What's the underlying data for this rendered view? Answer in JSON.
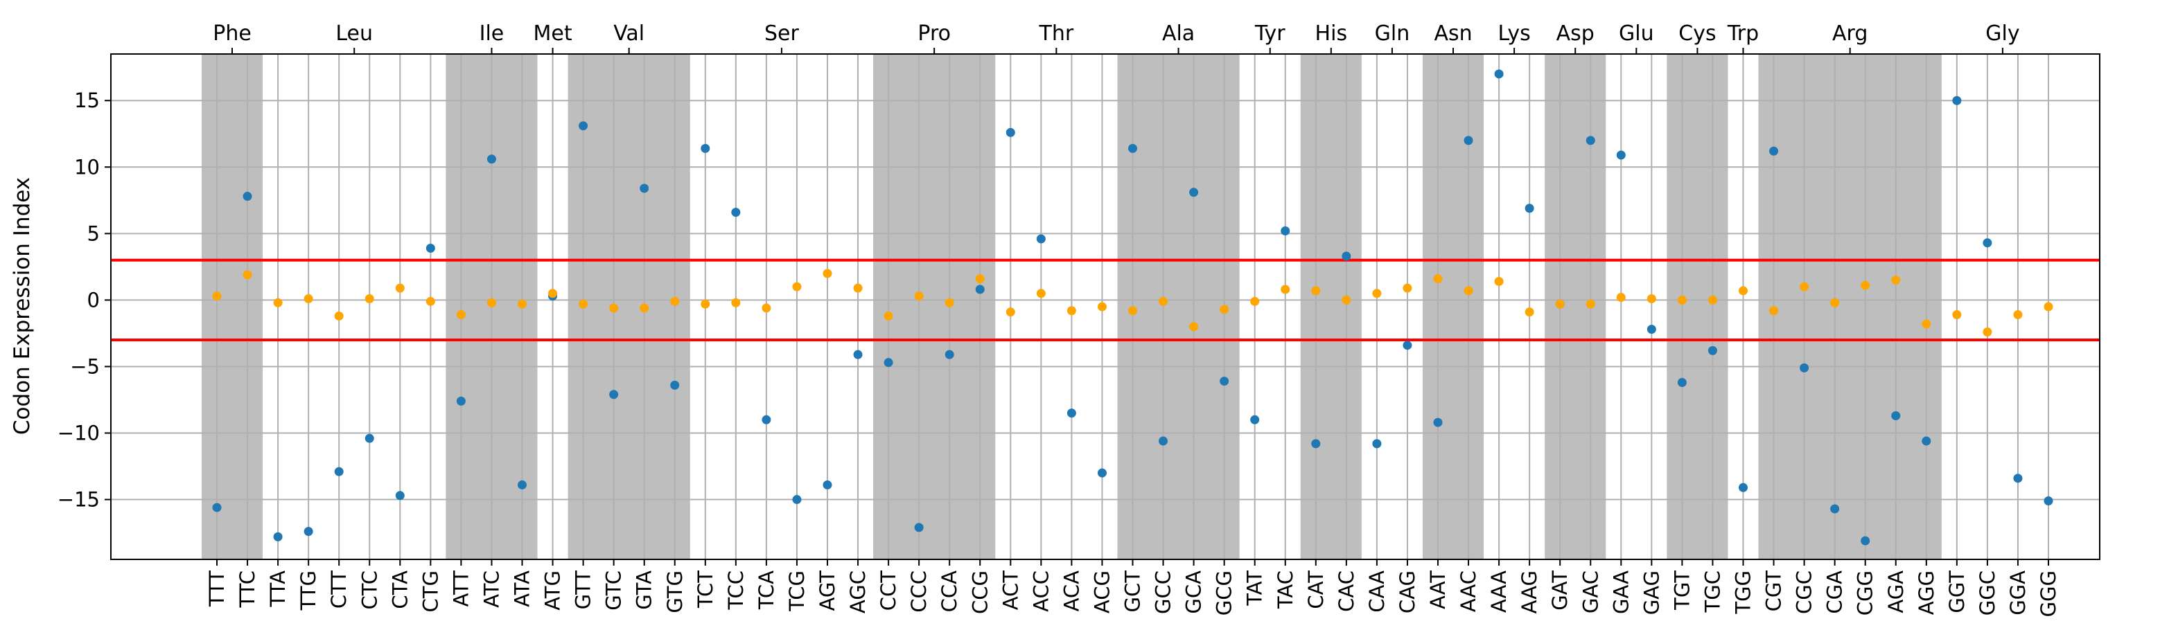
{
  "chart_data": {
    "type": "scatter",
    "ylabel": "Codon Expression Index",
    "ylim": [
      -19.5,
      18.5
    ],
    "yticks": [
      -15,
      -10,
      -5,
      0,
      5,
      10,
      15
    ],
    "thresholds": [
      3,
      -3
    ],
    "colors": {
      "series_blue": "#1f77b4",
      "series_orange": "#ffa500",
      "threshold": "#ff0000",
      "shade": "#bebebe",
      "grid": "#b0b0b0"
    },
    "categories": [
      "TTT",
      "TTC",
      "TTA",
      "TTG",
      "CTT",
      "CTC",
      "CTA",
      "CTG",
      "ATT",
      "ATC",
      "ATA",
      "ATG",
      "GTT",
      "GTC",
      "GTA",
      "GTG",
      "TCT",
      "TCC",
      "TCA",
      "TCG",
      "AGT",
      "AGC",
      "CCT",
      "CCC",
      "CCA",
      "CCG",
      "ACT",
      "ACC",
      "ACA",
      "ACG",
      "GCT",
      "GCC",
      "GCA",
      "GCG",
      "TAT",
      "TAC",
      "CAT",
      "CAC",
      "CAA",
      "CAG",
      "AAT",
      "AAC",
      "AAA",
      "AAG",
      "GAT",
      "GAC",
      "GAA",
      "GAG",
      "TGT",
      "TGC",
      "TGG",
      "CGT",
      "CGC",
      "CGA",
      "CGG",
      "AGA",
      "AGG",
      "GGT",
      "GGC",
      "GGA",
      "GGG"
    ],
    "amino_acids": [
      {
        "name": "Phe",
        "start": 0,
        "count": 2,
        "shaded": true
      },
      {
        "name": "Leu",
        "start": 2,
        "count": 6,
        "shaded": false
      },
      {
        "name": "Ile",
        "start": 8,
        "count": 3,
        "shaded": true
      },
      {
        "name": "Met",
        "start": 11,
        "count": 1,
        "shaded": false
      },
      {
        "name": "Val",
        "start": 12,
        "count": 4,
        "shaded": true
      },
      {
        "name": "Ser",
        "start": 16,
        "count": 6,
        "shaded": false
      },
      {
        "name": "Pro",
        "start": 22,
        "count": 4,
        "shaded": true
      },
      {
        "name": "Thr",
        "start": 26,
        "count": 4,
        "shaded": false
      },
      {
        "name": "Ala",
        "start": 30,
        "count": 4,
        "shaded": true
      },
      {
        "name": "Tyr",
        "start": 34,
        "count": 2,
        "shaded": false
      },
      {
        "name": "His",
        "start": 36,
        "count": 2,
        "shaded": true
      },
      {
        "name": "Gln",
        "start": 38,
        "count": 2,
        "shaded": false
      },
      {
        "name": "Asn",
        "start": 40,
        "count": 2,
        "shaded": true
      },
      {
        "name": "Lys",
        "start": 42,
        "count": 2,
        "shaded": false
      },
      {
        "name": "Asp",
        "start": 44,
        "count": 2,
        "shaded": true
      },
      {
        "name": "Glu",
        "start": 46,
        "count": 2,
        "shaded": false
      },
      {
        "name": "Cys",
        "start": 48,
        "count": 2,
        "shaded": true
      },
      {
        "name": "Trp",
        "start": 50,
        "count": 1,
        "shaded": false
      },
      {
        "name": "Arg",
        "start": 51,
        "count": 6,
        "shaded": true
      },
      {
        "name": "Gly",
        "start": 57,
        "count": 4,
        "shaded": false
      }
    ],
    "series": [
      {
        "name": "blue",
        "values": [
          -15.6,
          7.8,
          -17.8,
          -17.4,
          -12.9,
          -10.4,
          -14.7,
          3.9,
          -7.6,
          10.6,
          -13.9,
          0.3,
          13.1,
          -7.1,
          8.4,
          -6.4,
          11.4,
          6.6,
          -9.0,
          -15.0,
          -13.9,
          -4.1,
          -4.7,
          -17.1,
          -4.1,
          0.8,
          12.6,
          4.6,
          -8.5,
          -13.0,
          11.4,
          -10.6,
          8.1,
          -6.1,
          -9.0,
          5.2,
          -10.8,
          3.3,
          -10.8,
          -3.4,
          -9.2,
          12.0,
          17.0,
          6.9,
          -0.3,
          12.0,
          10.9,
          -2.2,
          -6.2,
          -3.8,
          -14.1,
          11.2,
          -5.1,
          -15.7,
          -18.1,
          -8.7,
          -10.6,
          15.0,
          4.3,
          -13.4,
          -15.1
        ]
      },
      {
        "name": "orange",
        "values": [
          0.3,
          1.9,
          -0.2,
          0.1,
          -1.2,
          0.1,
          0.9,
          -0.1,
          -1.1,
          -0.2,
          -0.3,
          0.5,
          -0.3,
          -0.6,
          -0.6,
          -0.1,
          -0.3,
          -0.2,
          -0.6,
          1.0,
          2.0,
          0.9,
          -1.2,
          0.3,
          -0.2,
          1.6,
          -0.9,
          0.5,
          -0.8,
          -0.5,
          -0.8,
          -0.1,
          -2.0,
          -0.7,
          -0.1,
          0.8,
          0.7,
          0.0,
          0.5,
          0.9,
          1.6,
          0.7,
          1.4,
          -0.9,
          -0.3,
          -0.3,
          0.2,
          0.1,
          0.0,
          0.0,
          0.7,
          -0.8,
          1.0,
          -0.2,
          1.1,
          1.5,
          -1.8,
          -1.1,
          -2.4,
          -1.1,
          -0.5
        ]
      }
    ]
  }
}
